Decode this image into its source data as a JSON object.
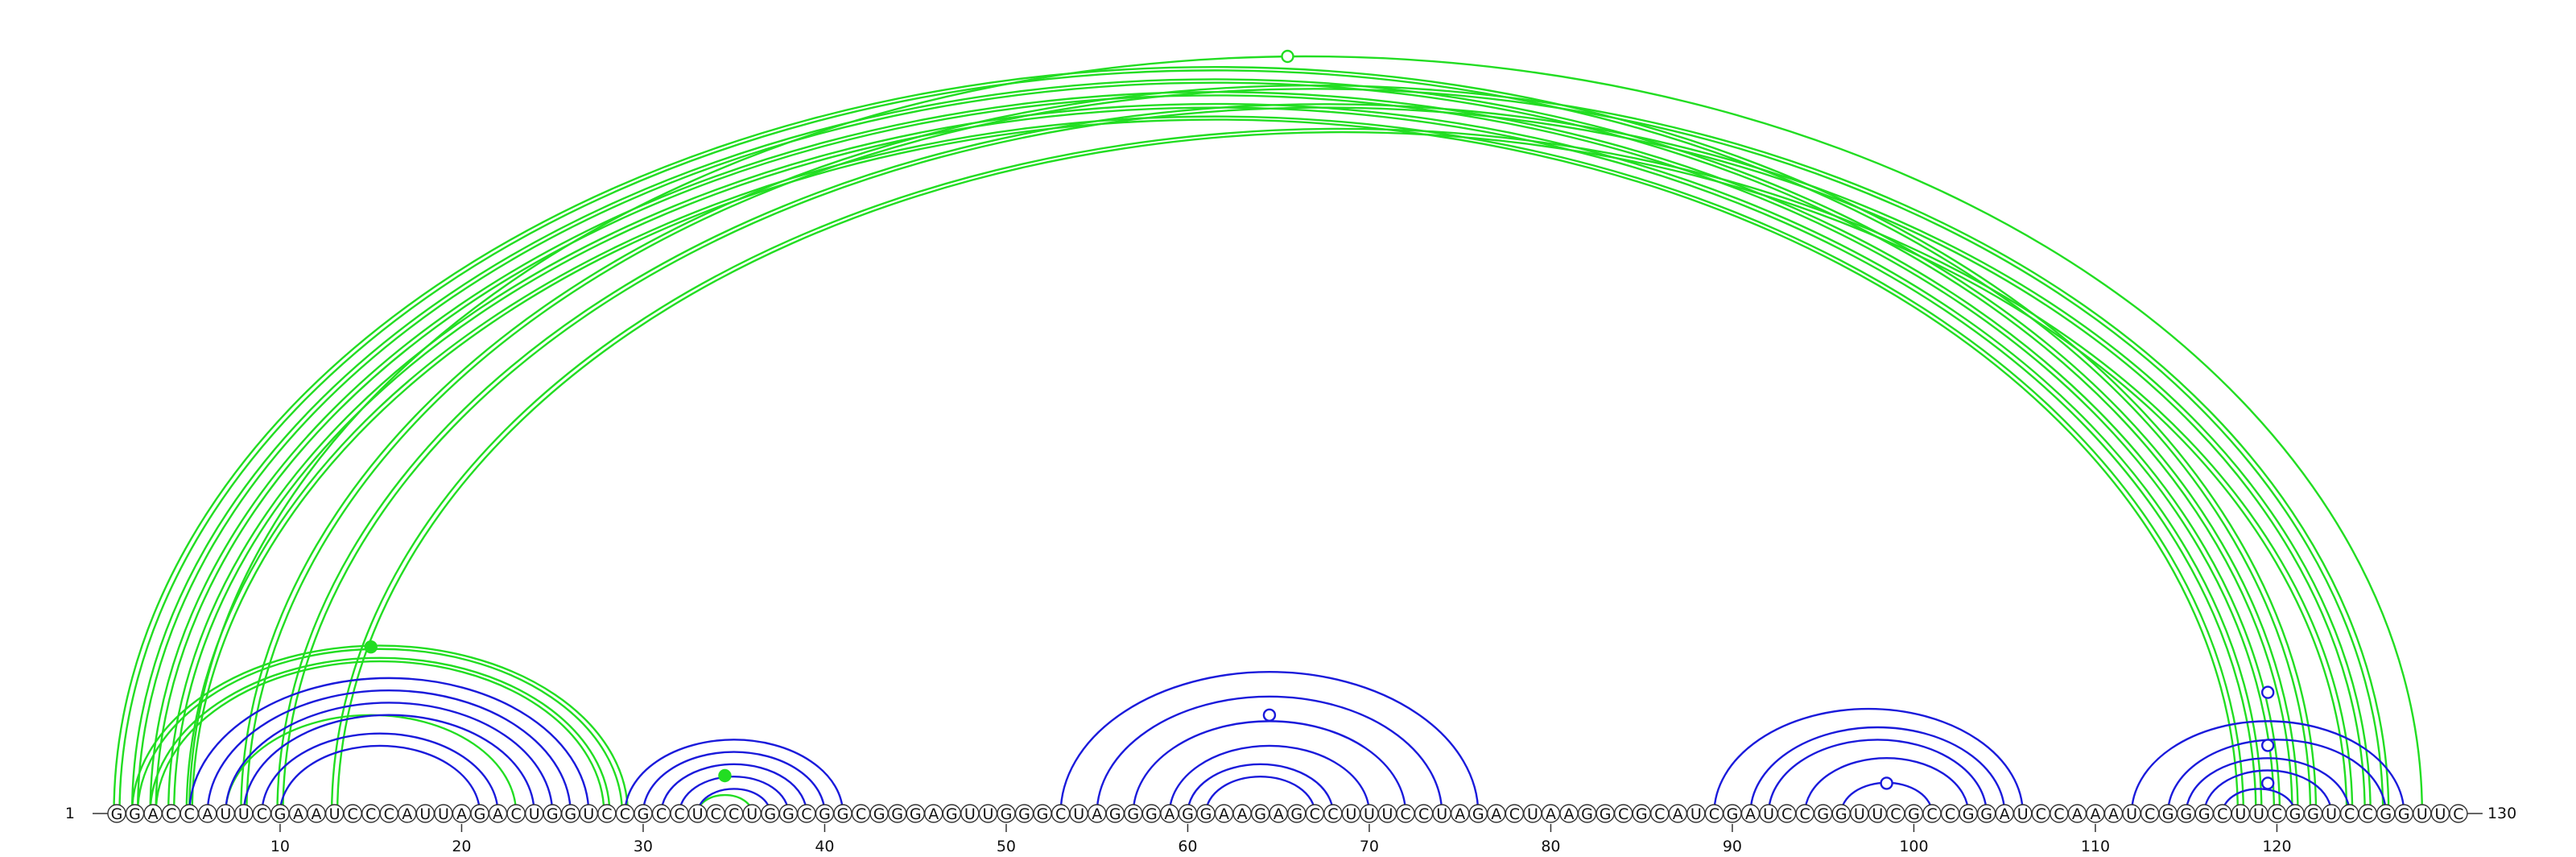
{
  "sequence": "GGACCAUUCGAAUCCCAUUAGACUGGUCCGCCUCCUGGCGGCGGGAGUUGGGCUAGGGAGGAAGAGCCUUUCCUAGACUAAGGCGCAUCGAUCCGGUUCGCCGGAUCCAAAUCGGGCUUCGGUCCGGUUC",
  "start_label": "1",
  "end_label": "130",
  "tick_positions": [
    10,
    20,
    30,
    40,
    50,
    60,
    70,
    80,
    90,
    100,
    110,
    120
  ],
  "colors": {
    "blue": "#1a1adb",
    "green": "#22dd22",
    "backbone": "#333333"
  },
  "arc_groups": [
    {
      "color": "green",
      "pairs": [
        [
          1,
          122
        ],
        [
          2,
          121
        ],
        [
          3,
          120
        ],
        [
          4,
          119
        ],
        [
          5,
          118
        ]
      ],
      "double": true
    },
    {
      "color": "green",
      "pairs": [
        [
          8,
          126
        ],
        [
          10,
          125
        ]
      ],
      "double": true
    },
    {
      "color": "green",
      "pairs": [
        [
          13,
          124
        ]
      ],
      "double": true
    },
    {
      "color": "green",
      "pairs": [
        [
          5,
          128
        ]
      ],
      "double": false
    },
    {
      "color": "green",
      "pairs": [
        [
          2,
          29
        ],
        [
          3,
          28
        ]
      ],
      "double": true
    },
    {
      "color": "green",
      "pairs": [
        [
          7,
          23
        ]
      ],
      "double": false
    },
    {
      "color": "green",
      "pairs": [
        [
          33,
          36
        ]
      ],
      "double": false
    },
    {
      "color": "blue",
      "pairs": [
        [
          5,
          27
        ],
        [
          6,
          26
        ],
        [
          7,
          25
        ],
        [
          8,
          24
        ],
        [
          9,
          22
        ],
        [
          10,
          21
        ]
      ],
      "double": false
    },
    {
      "color": "blue",
      "pairs": [
        [
          29,
          41
        ],
        [
          30,
          40
        ],
        [
          31,
          39
        ],
        [
          32,
          38
        ],
        [
          33,
          37
        ]
      ],
      "double": false
    },
    {
      "color": "blue",
      "pairs": [
        [
          53,
          76
        ],
        [
          55,
          74
        ],
        [
          57,
          72
        ],
        [
          59,
          70
        ],
        [
          60,
          68
        ],
        [
          61,
          67
        ]
      ],
      "double": false
    },
    {
      "color": "blue",
      "pairs": [
        [
          89,
          106
        ],
        [
          91,
          105
        ],
        [
          92,
          104
        ],
        [
          94,
          103
        ],
        [
          96,
          101
        ]
      ],
      "double": false
    },
    {
      "color": "blue",
      "pairs": [
        [
          112,
          127
        ],
        [
          114,
          126
        ],
        [
          115,
          124
        ],
        [
          116,
          123
        ],
        [
          117,
          121
        ]
      ],
      "double": false
    }
  ],
  "markers": [
    {
      "pos": 65.5,
      "level": "top",
      "filled": false,
      "color": "green"
    },
    {
      "pos": 15,
      "level": 0.22,
      "filled": true,
      "color": "green"
    },
    {
      "pos": 34.5,
      "level": 0.05,
      "filled": true,
      "color": "green"
    },
    {
      "pos": 64.5,
      "level": 0.13,
      "filled": false,
      "color": "blue"
    },
    {
      "pos": 98.5,
      "level": 0.04,
      "filled": false,
      "color": "blue"
    },
    {
      "pos": 119.5,
      "level": 0.16,
      "filled": false,
      "color": "blue"
    },
    {
      "pos": 119.5,
      "level": 0.09,
      "filled": false,
      "color": "blue"
    },
    {
      "pos": 119.5,
      "level": 0.04,
      "filled": false,
      "color": "blue"
    }
  ]
}
